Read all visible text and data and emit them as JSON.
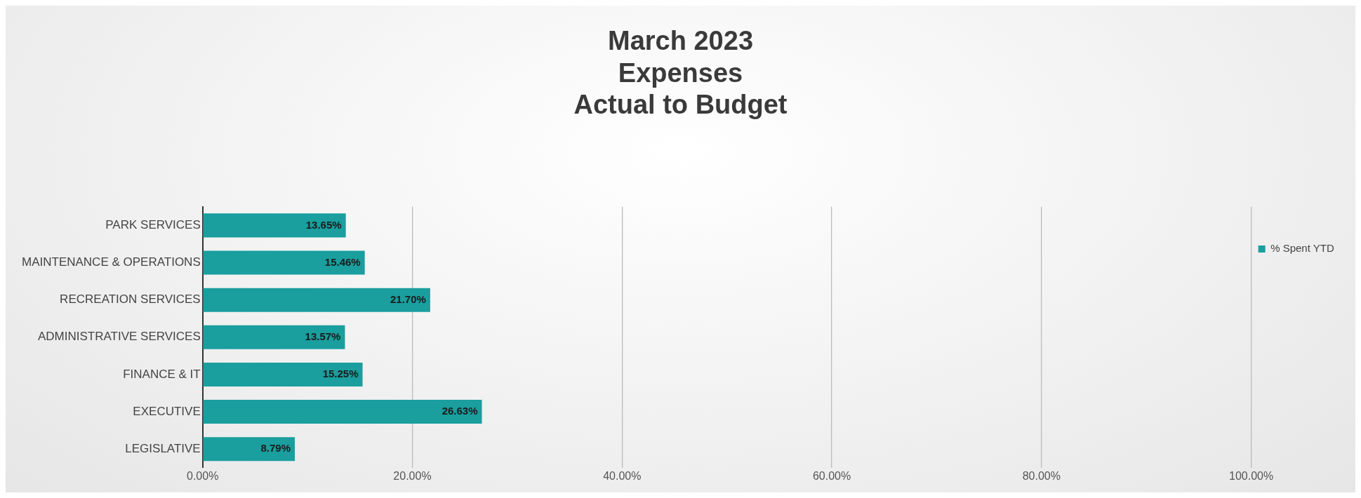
{
  "chart_data": {
    "type": "bar",
    "orientation": "horizontal",
    "title": "March 2023\nExpenses\nActual to Budget",
    "categories": [
      "PARK SERVICES",
      "MAINTENANCE & OPERATIONS",
      "RECREATION SERVICES",
      "ADMINISTRATIVE SERVICES",
      "FINANCE & IT",
      "EXECUTIVE",
      "LEGISLATIVE"
    ],
    "series": [
      {
        "name": "% Spent YTD",
        "color": "#1a9e9e",
        "values": [
          13.65,
          15.46,
          21.7,
          13.57,
          15.25,
          26.63,
          8.79
        ],
        "value_labels": [
          "13.65%",
          "15.46%",
          "21.70%",
          "13.57%",
          "15.25%",
          "26.63%",
          "8.79%"
        ]
      }
    ],
    "xlim": [
      0,
      100
    ],
    "xticks": [
      {
        "value": 0,
        "label": "0.00%"
      },
      {
        "value": 20,
        "label": "20.00%"
      },
      {
        "value": 40,
        "label": "40.00%"
      },
      {
        "value": 60,
        "label": "60.00%"
      },
      {
        "value": 80,
        "label": "80.00%"
      },
      {
        "value": 100,
        "label": "100.00%"
      }
    ],
    "grid": "x",
    "legend": "right"
  }
}
